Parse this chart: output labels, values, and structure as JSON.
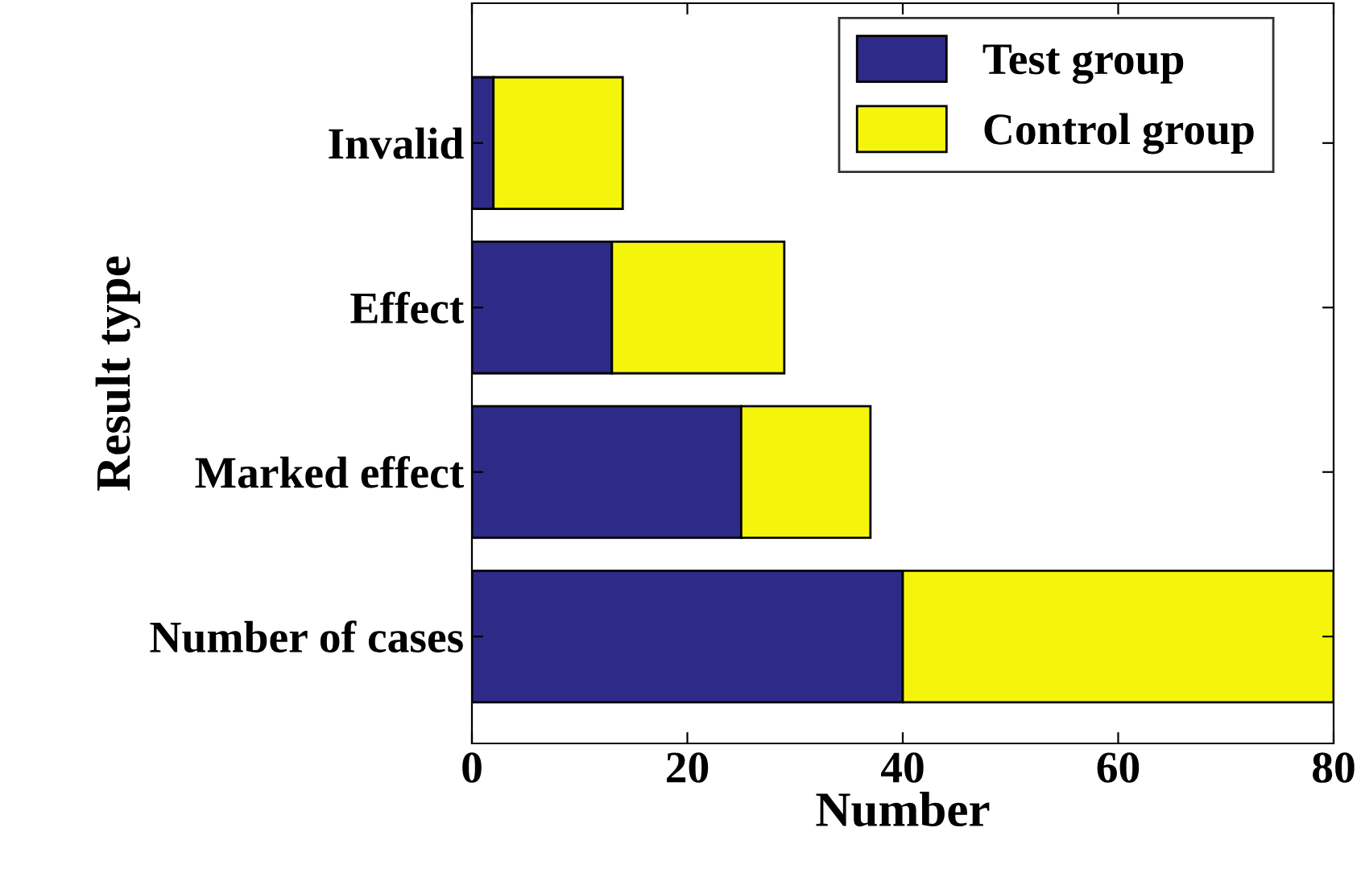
{
  "chart_data": {
    "type": "bar",
    "orientation": "horizontal",
    "stacked": true,
    "xlabel": "Number",
    "ylabel": "Result type",
    "categories": [
      "Invalid",
      "Effect",
      "Marked effect",
      "Number of cases"
    ],
    "series": [
      {
        "name": "Test group",
        "color": "#2e2a87",
        "values": [
          2,
          13,
          25,
          40
        ]
      },
      {
        "name": "Control group",
        "color": "#f5f50c",
        "values": [
          12,
          16,
          12,
          40
        ]
      }
    ],
    "xlim": [
      0,
      80
    ],
    "xticks": [
      0,
      20,
      40,
      60,
      80
    ],
    "legend": "top right",
    "grid": false
  }
}
